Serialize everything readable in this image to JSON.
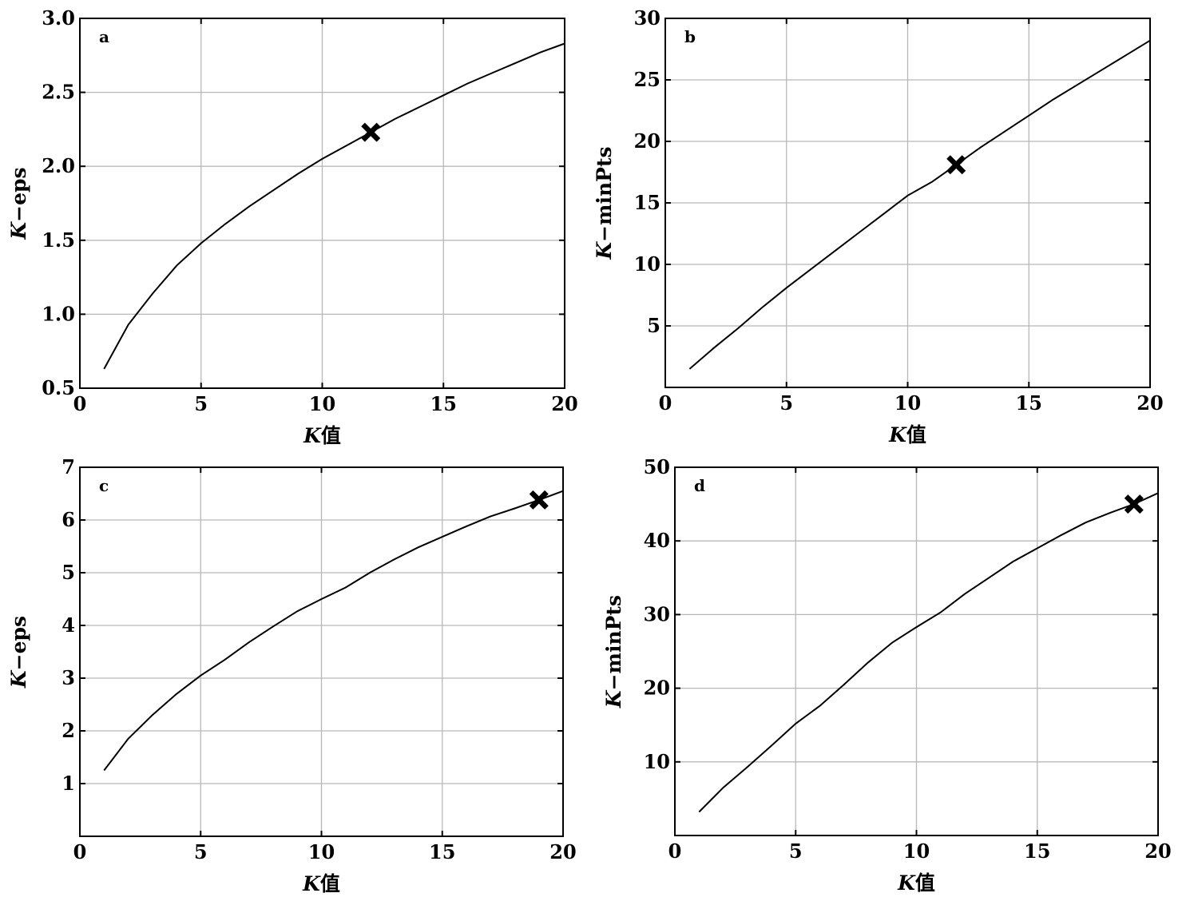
{
  "chart_data": [
    {
      "type": "line",
      "panel_label": "a",
      "xlabel": {
        "italic": "K",
        "rest": "值"
      },
      "ylabel": {
        "italic": "K",
        "rest": "−eps"
      },
      "xlim": [
        0,
        20
      ],
      "ylim": [
        0.5,
        3.0
      ],
      "xticks": [
        0,
        5,
        10,
        15,
        20
      ],
      "yticks": [
        0.5,
        1.0,
        1.5,
        2.0,
        2.5,
        3.0
      ],
      "ytick_labels": [
        "0.5",
        "1.0",
        "1.5",
        "2.0",
        "2.5",
        "3.0"
      ],
      "grid": true,
      "x": [
        1,
        2,
        3,
        4,
        5,
        6,
        7,
        8,
        9,
        10,
        11,
        12,
        13,
        14,
        15,
        16,
        17,
        18,
        19,
        20
      ],
      "y": [
        0.63,
        0.93,
        1.14,
        1.33,
        1.48,
        1.61,
        1.73,
        1.84,
        1.95,
        2.05,
        2.14,
        2.23,
        2.32,
        2.4,
        2.48,
        2.56,
        2.63,
        2.7,
        2.77,
        2.83
      ],
      "highlight": {
        "x": 12,
        "y": 2.23,
        "marker": "X"
      }
    },
    {
      "type": "line",
      "panel_label": "b",
      "xlabel": {
        "italic": "K",
        "rest": "值"
      },
      "ylabel": {
        "italic": "K",
        "rest": "−minPts"
      },
      "xlim": [
        0,
        20
      ],
      "ylim": [
        0,
        30
      ],
      "xticks": [
        0,
        5,
        10,
        15,
        20
      ],
      "yticks": [
        5,
        10,
        15,
        20,
        25,
        30
      ],
      "ytick_labels": [
        "5",
        "10",
        "15",
        "20",
        "25",
        "30"
      ],
      "grid": true,
      "x": [
        1,
        2,
        3,
        4,
        5,
        6,
        7,
        8,
        9,
        10,
        11,
        12,
        13,
        14,
        15,
        16,
        17,
        18,
        19,
        20
      ],
      "y": [
        1.5,
        3.2,
        4.8,
        6.5,
        8.1,
        9.6,
        11.1,
        12.6,
        14.1,
        15.6,
        16.7,
        18.1,
        19.5,
        20.8,
        22.1,
        23.4,
        24.6,
        25.8,
        27.0,
        28.2
      ],
      "highlight": {
        "x": 12,
        "y": 18.1,
        "marker": "X"
      }
    },
    {
      "type": "line",
      "panel_label": "c",
      "xlabel": {
        "italic": "K",
        "rest": "值"
      },
      "ylabel": {
        "italic": "K",
        "rest": "−eps"
      },
      "xlim": [
        0,
        20
      ],
      "ylim": [
        0,
        7
      ],
      "xticks": [
        0,
        5,
        10,
        15,
        20
      ],
      "yticks": [
        1,
        2,
        3,
        4,
        5,
        6,
        7
      ],
      "ytick_labels": [
        "1",
        "2",
        "3",
        "4",
        "5",
        "6",
        "7"
      ],
      "grid": true,
      "x": [
        1,
        2,
        3,
        4,
        5,
        6,
        7,
        8,
        9,
        10,
        11,
        12,
        13,
        14,
        15,
        16,
        17,
        18,
        19,
        20
      ],
      "y": [
        1.25,
        1.85,
        2.3,
        2.7,
        3.05,
        3.35,
        3.68,
        3.98,
        4.27,
        4.5,
        4.72,
        5.0,
        5.25,
        5.48,
        5.68,
        5.88,
        6.07,
        6.22,
        6.38,
        6.55
      ],
      "highlight": {
        "x": 19,
        "y": 6.38,
        "marker": "X"
      }
    },
    {
      "type": "line",
      "panel_label": "d",
      "xlabel": {
        "italic": "K",
        "rest": "值"
      },
      "ylabel": {
        "italic": "K",
        "rest": "−minPts"
      },
      "xlim": [
        0,
        20
      ],
      "ylim": [
        0,
        50
      ],
      "xticks": [
        0,
        5,
        10,
        15,
        20
      ],
      "yticks": [
        10,
        20,
        30,
        40,
        50
      ],
      "ytick_labels": [
        "10",
        "20",
        "30",
        "40",
        "50"
      ],
      "grid": true,
      "x": [
        1,
        2,
        3,
        4,
        5,
        6,
        7,
        8,
        9,
        10,
        11,
        12,
        13,
        14,
        15,
        16,
        17,
        18,
        19,
        20
      ],
      "y": [
        3.2,
        6.5,
        9.3,
        12.2,
        15.2,
        17.6,
        20.5,
        23.5,
        26.2,
        28.3,
        30.3,
        32.8,
        35.0,
        37.2,
        39.0,
        40.8,
        42.5,
        43.8,
        45.0,
        46.5
      ],
      "highlight": {
        "x": 19,
        "y": 45.0,
        "marker": "X"
      }
    }
  ]
}
